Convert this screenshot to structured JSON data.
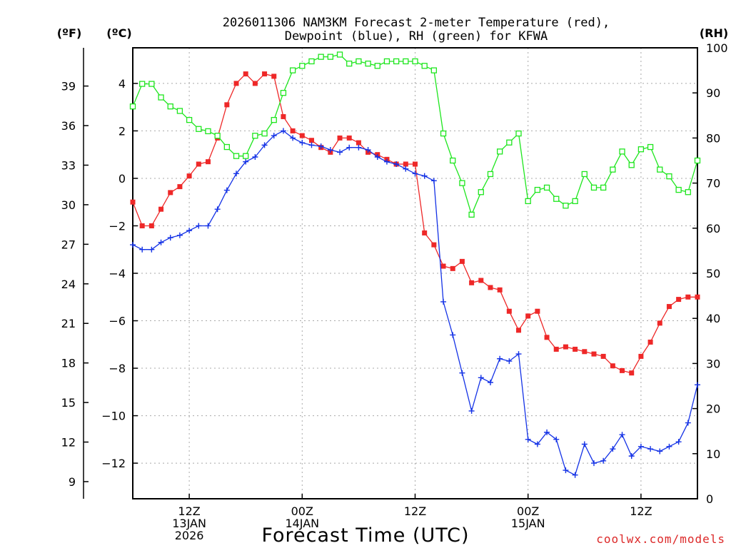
{
  "chart_data": {
    "type": "line",
    "title": "2026011306 NAM3KM Forecast 2-meter Temperature (red),",
    "subtitle": "Dewpoint (blue), RH (green) for KFWA",
    "xlabel": "Forecast Time (UTC)",
    "left_outer_label": "(ºF)",
    "left_inner_label": "(ºC)",
    "right_label": "(RH)",
    "credit": "coolwx.com/models",
    "hours_start": 0,
    "hours_end": 60,
    "ylim_c": [
      -13.5,
      5.5
    ],
    "ylim_rh": [
      0,
      100
    ],
    "yticks_c": [
      {
        "v": 4,
        "label": "4"
      },
      {
        "v": 2,
        "label": "2"
      },
      {
        "v": 0,
        "label": "0"
      },
      {
        "v": -2,
        "label": "−2"
      },
      {
        "v": -4,
        "label": "−4"
      },
      {
        "v": -6,
        "label": "−6"
      },
      {
        "v": -8,
        "label": "−8"
      },
      {
        "v": -10,
        "label": "−10"
      },
      {
        "v": -12,
        "label": "−12"
      }
    ],
    "yticks_f": [
      {
        "v": 39,
        "label": "39"
      },
      {
        "v": 36,
        "label": "36"
      },
      {
        "v": 33,
        "label": "33"
      },
      {
        "v": 30,
        "label": "30"
      },
      {
        "v": 27,
        "label": "27"
      },
      {
        "v": 24,
        "label": "24"
      },
      {
        "v": 21,
        "label": "21"
      },
      {
        "v": 18,
        "label": "18"
      },
      {
        "v": 15,
        "label": "15"
      },
      {
        "v": 12,
        "label": "12"
      },
      {
        "v": 9,
        "label": "9"
      }
    ],
    "yticks_rh": [
      {
        "v": 100,
        "label": "100"
      },
      {
        "v": 90,
        "label": "90"
      },
      {
        "v": 80,
        "label": "80"
      },
      {
        "v": 70,
        "label": "70"
      },
      {
        "v": 60,
        "label": "60"
      },
      {
        "v": 50,
        "label": "50"
      },
      {
        "v": 40,
        "label": "40"
      },
      {
        "v": 30,
        "label": "30"
      },
      {
        "v": 20,
        "label": "20"
      },
      {
        "v": 10,
        "label": "10"
      },
      {
        "v": 0,
        "label": "0"
      }
    ],
    "xticks": [
      {
        "h": 6,
        "lines": [
          "12Z",
          "13JAN",
          "2026"
        ]
      },
      {
        "h": 18,
        "lines": [
          "00Z",
          "14JAN"
        ]
      },
      {
        "h": 30,
        "lines": [
          "12Z"
        ]
      },
      {
        "h": 42,
        "lines": [
          "00Z",
          "15JAN"
        ]
      },
      {
        "h": 54,
        "lines": [
          "12Z"
        ]
      }
    ],
    "series": [
      {
        "name": "2-meter Temperature",
        "unit": "°C",
        "color": "#ee2828",
        "marker": "filled-square",
        "x": [
          0,
          1,
          2,
          3,
          4,
          5,
          6,
          7,
          8,
          9,
          10,
          11,
          12,
          13,
          14,
          15,
          16,
          17,
          18,
          19,
          20,
          21,
          22,
          23,
          24,
          25,
          26,
          27,
          28,
          29,
          30,
          31,
          32,
          33,
          34,
          35,
          36,
          37,
          38,
          39,
          40,
          41,
          42,
          43,
          44,
          45,
          46,
          47,
          48,
          49,
          50,
          51,
          52,
          53,
          54,
          55,
          56,
          57,
          58,
          59,
          60
        ],
        "values": [
          -1,
          -2,
          -2,
          -1.3,
          -0.6,
          -0.35,
          0.1,
          0.6,
          0.7,
          1.7,
          3.1,
          4,
          4.4,
          4,
          4.4,
          4.3,
          2.6,
          2,
          1.8,
          1.6,
          1.3,
          1.1,
          1.7,
          1.7,
          1.5,
          1.1,
          1,
          0.8,
          0.6,
          0.6,
          0.6,
          -2.3,
          -2.8,
          -3.7,
          -3.8,
          -3.5,
          -4.4,
          -4.3,
          -4.6,
          -4.7,
          -5.6,
          -6.4,
          -5.8,
          -5.6,
          -6.7,
          -7.2,
          -7.1,
          -7.2,
          -7.3,
          -7.4,
          -7.5,
          -7.9,
          -8.1,
          -8.2,
          -7.5,
          -6.9,
          -6.1,
          -5.4,
          -5.1,
          -5,
          -5
        ]
      },
      {
        "name": "Dewpoint",
        "unit": "°C",
        "color": "#1432e6",
        "marker": "plus",
        "x": [
          0,
          1,
          2,
          3,
          4,
          5,
          6,
          7,
          8,
          9,
          10,
          11,
          12,
          13,
          14,
          15,
          16,
          17,
          18,
          19,
          20,
          21,
          22,
          23,
          24,
          25,
          26,
          27,
          28,
          29,
          30,
          31,
          32,
          33,
          34,
          35,
          36,
          37,
          38,
          39,
          40,
          41,
          42,
          43,
          44,
          45,
          46,
          47,
          48,
          49,
          50,
          51,
          52,
          53,
          54,
          55,
          56,
          57,
          58,
          59,
          60
        ],
        "values": [
          -2.8,
          -3,
          -3,
          -2.7,
          -2.5,
          -2.4,
          -2.2,
          -2,
          -2,
          -1.3,
          -0.5,
          0.2,
          0.7,
          0.9,
          1.4,
          1.8,
          2,
          1.7,
          1.5,
          1.4,
          1.35,
          1.2,
          1.1,
          1.3,
          1.3,
          1.2,
          0.9,
          0.7,
          0.6,
          0.4,
          0.2,
          0.1,
          -0.1,
          -5.2,
          -6.6,
          -8.2,
          -9.8,
          -8.4,
          -8.6,
          -7.6,
          -7.7,
          -7.4,
          -11,
          -11.2,
          -10.7,
          -11,
          -12.3,
          -12.5,
          -11.2,
          -12,
          -11.9,
          -11.4,
          -10.8,
          -11.7,
          -11.3,
          -11.4,
          -11.5,
          -11.3,
          -11.1,
          -10.3,
          -8.7
        ]
      },
      {
        "name": "Relative Humidity",
        "unit": "%",
        "color": "#1ee61e",
        "marker": "open-square",
        "x": [
          0,
          1,
          2,
          3,
          4,
          5,
          6,
          7,
          8,
          9,
          10,
          11,
          12,
          13,
          14,
          15,
          16,
          17,
          18,
          19,
          20,
          21,
          22,
          23,
          24,
          25,
          26,
          27,
          28,
          29,
          30,
          31,
          32,
          33,
          34,
          35,
          36,
          37,
          38,
          39,
          40,
          41,
          42,
          43,
          44,
          45,
          46,
          47,
          48,
          49,
          50,
          51,
          52,
          53,
          54,
          55,
          56,
          57,
          58,
          59,
          60
        ],
        "values": [
          87,
          92,
          92,
          89,
          87,
          86,
          84,
          82,
          81.5,
          80.5,
          78,
          76,
          76,
          80.5,
          81,
          84,
          90,
          95,
          96,
          97,
          98,
          98,
          98.5,
          96.5,
          97,
          96.5,
          96,
          97,
          97,
          97,
          97,
          96,
          95,
          81,
          75,
          70,
          63,
          68,
          72,
          77,
          79,
          81,
          66,
          68.5,
          69,
          66.5,
          65,
          66,
          72,
          69,
          69,
          73,
          77,
          74,
          77.5,
          78,
          73,
          71.5,
          68.5,
          68,
          75
        ]
      }
    ]
  }
}
